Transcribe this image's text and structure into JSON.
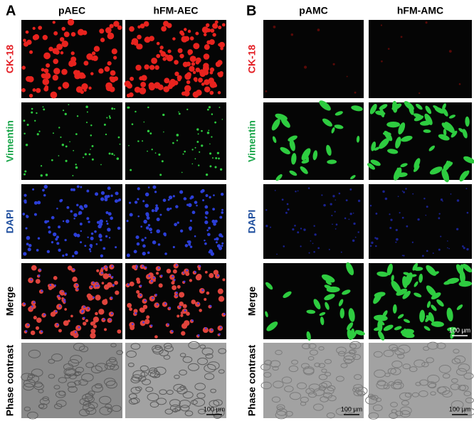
{
  "panels": [
    {
      "label": "A",
      "columns": [
        "pAEC",
        "hFM-AEC"
      ],
      "rows": [
        "CK-18",
        "Vimentin",
        "DAPI",
        "Merge",
        "Phase contrast"
      ],
      "scale_bars": [
        "100 µm"
      ]
    },
    {
      "label": "B",
      "columns": [
        "pAMC",
        "hFM-AMC"
      ],
      "rows": [
        "CK-18",
        "Vimentin",
        "DAPI",
        "Merge",
        "Phase contrast"
      ],
      "scale_bars": [
        "100 µm",
        "100 µm",
        "100 µm"
      ]
    }
  ]
}
